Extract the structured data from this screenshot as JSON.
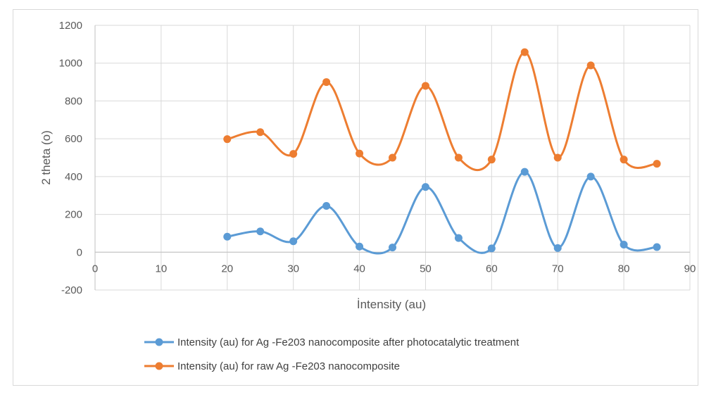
{
  "chart_data": {
    "type": "line",
    "xlabel": "İntensity (au)",
    "ylabel": "2 theta  (o)",
    "xlim": [
      0,
      90
    ],
    "ylim": [
      -200,
      1200
    ],
    "x_ticks": [
      0,
      10,
      20,
      30,
      40,
      50,
      60,
      70,
      80,
      90
    ],
    "y_ticks": [
      -200,
      0,
      200,
      400,
      600,
      800,
      1000,
      1200
    ],
    "grid": true,
    "smooth": true,
    "legend_position": "bottom",
    "x": [
      20,
      25,
      30,
      35,
      40,
      45,
      50,
      55,
      60,
      65,
      70,
      75,
      80,
      85
    ],
    "series": [
      {
        "name": "Intensity (au) for  Ag -Fe203 nanocomposite after photocatalytic treatment",
        "color": "#5b9bd5",
        "values": [
          82,
          110,
          58,
          245,
          30,
          25,
          345,
          75,
          20,
          425,
          22,
          400,
          40,
          27
        ]
      },
      {
        "name": "Intensity (au) for  raw Ag -Fe203 nanocomposite",
        "color": "#ed7d31",
        "values": [
          598,
          635,
          520,
          900,
          522,
          500,
          880,
          500,
          490,
          1058,
          500,
          988,
          490,
          468
        ]
      }
    ]
  }
}
